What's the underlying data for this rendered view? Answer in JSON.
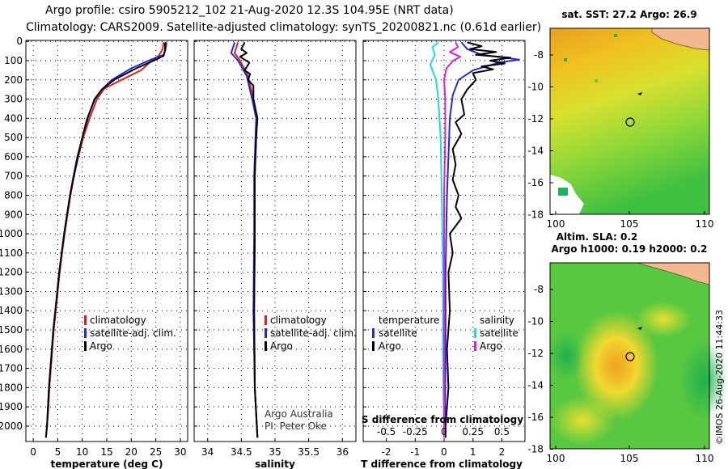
{
  "header": {
    "title_line1": "Argo profile: csiro 5905212_102 21-Aug-2020 12.3S 104.95E (NRT data)",
    "title_line2": "Climatology: CARS2009. Satellite-adjusted climatology: synTS_20200821.nc (0.61d earlier)"
  },
  "colors": {
    "climatology": "#e0201c",
    "satellite": "#1f2cd8",
    "argo": "#000000",
    "sat_salinity": "#22d8e0",
    "argo_salinity": "#e020d8"
  },
  "depth_axis": {
    "ticks": [
      0,
      100,
      200,
      300,
      400,
      500,
      600,
      700,
      800,
      900,
      1000,
      1100,
      1200,
      1300,
      1400,
      1500,
      1600,
      1700,
      1800,
      1900,
      2000
    ],
    "range": [
      -5,
      2080
    ]
  },
  "chart_data": [
    {
      "id": "temperature",
      "type": "line",
      "xlabel": "temperature (deg C)",
      "ylabel": "",
      "xlim": [
        -1.5,
        31.5
      ],
      "xticks": [
        0,
        5,
        10,
        15,
        20,
        25,
        30
      ],
      "xtick_labels": [
        "0",
        "5",
        "10",
        "15",
        "20",
        "25",
        "30"
      ],
      "legend": [
        "climatology",
        "satellite-adj. clim.",
        "Argo"
      ],
      "series": [
        {
          "name": "climatology",
          "color": "#e0201c",
          "points": [
            [
              26.6,
              5
            ],
            [
              26.4,
              40
            ],
            [
              25.6,
              75
            ],
            [
              24.2,
              100
            ],
            [
              22,
              150
            ],
            [
              18,
              200
            ],
            [
              14.5,
              245
            ],
            [
              13,
              300
            ],
            [
              11.5,
              400
            ],
            [
              10.2,
              500
            ],
            [
              9.2,
              600
            ],
            [
              8.3,
              700
            ],
            [
              7.6,
              800
            ],
            [
              7,
              900
            ],
            [
              6.4,
              1000
            ],
            [
              5.9,
              1100
            ],
            [
              5.4,
              1200
            ],
            [
              5,
              1300
            ],
            [
              4.6,
              1400
            ],
            [
              4.2,
              1500
            ],
            [
              3.9,
              1600
            ],
            [
              3.6,
              1700
            ],
            [
              3.3,
              1800
            ],
            [
              3.1,
              1900
            ],
            [
              2.8,
              2000
            ],
            [
              2.6,
              2060
            ]
          ]
        },
        {
          "name": "satellite-adj. clim.",
          "color": "#1f2cd8",
          "points": [
            [
              27.2,
              5
            ],
            [
              27,
              40
            ],
            [
              26.6,
              70
            ],
            [
              24,
              95
            ],
            [
              20,
              140
            ],
            [
              16,
              200
            ],
            [
              14,
              250
            ],
            [
              12.6,
              300
            ],
            [
              11,
              400
            ],
            [
              10,
              500
            ],
            [
              9,
              600
            ],
            [
              8.2,
              700
            ],
            [
              7.5,
              800
            ],
            [
              6.9,
              900
            ],
            [
              6.3,
              1000
            ],
            [
              5.8,
              1100
            ],
            [
              5.3,
              1200
            ],
            [
              4.9,
              1300
            ],
            [
              4.5,
              1400
            ],
            [
              4.1,
              1500
            ],
            [
              3.8,
              1600
            ],
            [
              3.5,
              1700
            ],
            [
              3.2,
              1800
            ],
            [
              3,
              1900
            ],
            [
              2.8,
              2000
            ],
            [
              2.6,
              2060
            ]
          ]
        },
        {
          "name": "Argo",
          "color": "#000000",
          "points": [
            [
              26.9,
              5
            ],
            [
              26.9,
              45
            ],
            [
              26.6,
              75
            ],
            [
              25,
              95
            ],
            [
              21,
              140
            ],
            [
              16.5,
              200
            ],
            [
              14,
              250
            ],
            [
              12.5,
              300
            ],
            [
              11.1,
              400
            ],
            [
              10,
              500
            ],
            [
              9.1,
              600
            ],
            [
              8.3,
              700
            ],
            [
              7.5,
              800
            ],
            [
              6.9,
              900
            ],
            [
              6.3,
              1000
            ],
            [
              5.8,
              1100
            ],
            [
              5.3,
              1200
            ],
            [
              4.9,
              1300
            ],
            [
              4.5,
              1400
            ],
            [
              4.1,
              1500
            ],
            [
              3.8,
              1600
            ],
            [
              3.5,
              1700
            ],
            [
              3.2,
              1800
            ],
            [
              3,
              1900
            ],
            [
              2.8,
              2000
            ],
            [
              2.6,
              2060
            ]
          ]
        }
      ]
    },
    {
      "id": "salinity",
      "type": "line",
      "xlabel": "salinity",
      "ylabel": "",
      "xlim": [
        33.8,
        36.2
      ],
      "xticks": [
        34,
        34.5,
        35,
        35.5,
        36
      ],
      "xtick_labels": [
        "34",
        "34.5",
        "35",
        "35.5",
        "36"
      ],
      "legend": [
        "climatology",
        "satellite-adj. clim.",
        "Argo"
      ],
      "credit_line1": "Argo Australia",
      "credit_line2": "PI: Peter Oke",
      "series": [
        {
          "name": "climatology",
          "color": "#e0201c",
          "points": [
            [
              34.45,
              5
            ],
            [
              34.4,
              60
            ],
            [
              34.48,
              100
            ],
            [
              34.6,
              180
            ],
            [
              34.68,
              300
            ],
            [
              34.73,
              400
            ],
            [
              34.72,
              500
            ],
            [
              34.7,
              700
            ],
            [
              34.7,
              1000
            ],
            [
              34.69,
              1400
            ],
            [
              34.7,
              1800
            ],
            [
              34.73,
              2000
            ],
            [
              34.74,
              2060
            ]
          ]
        },
        {
          "name": "satellite-adj. clim.",
          "color": "#1f2cd8",
          "points": [
            [
              34.4,
              5
            ],
            [
              34.35,
              60
            ],
            [
              34.45,
              100
            ],
            [
              34.58,
              180
            ],
            [
              34.66,
              300
            ],
            [
              34.72,
              400
            ],
            [
              34.71,
              500
            ],
            [
              34.69,
              700
            ],
            [
              34.69,
              1000
            ],
            [
              34.68,
              1400
            ],
            [
              34.7,
              1800
            ],
            [
              34.73,
              2000
            ],
            [
              34.74,
              2060
            ]
          ]
        },
        {
          "name": "Argo",
          "color": "#000000",
          "points": [
            [
              34.55,
              5
            ],
            [
              34.5,
              40
            ],
            [
              34.58,
              60
            ],
            [
              34.48,
              80
            ],
            [
              34.62,
              110
            ],
            [
              34.55,
              150
            ],
            [
              34.63,
              170
            ],
            [
              34.6,
              200
            ],
            [
              34.68,
              230
            ],
            [
              34.68,
              300
            ],
            [
              34.74,
              400
            ],
            [
              34.72,
              500
            ],
            [
              34.7,
              700
            ],
            [
              34.7,
              1000
            ],
            [
              34.69,
              1400
            ],
            [
              34.7,
              1800
            ],
            [
              34.73,
              2000
            ],
            [
              34.74,
              2060
            ]
          ]
        }
      ]
    },
    {
      "id": "difference",
      "type": "line",
      "xlabel": "T difference from climatology",
      "xlabel2": "S difference from climatology",
      "xlim": [
        -2.8,
        2.8
      ],
      "xticks": [
        -2,
        -1,
        0,
        1,
        2
      ],
      "xtick_labels": [
        "-2",
        "-1",
        "0",
        "1",
        "2"
      ],
      "s_ticks": [
        -0.5,
        -0.25,
        0,
        0.25,
        0.5
      ],
      "s_tick_labels": [
        "-0.5",
        "-0.25",
        "0",
        "0.25",
        "0.5"
      ],
      "legend_temperature_heading": "temperature",
      "legend_salinity_heading": "salinity",
      "legend_temperature": [
        "satellite",
        "Argo"
      ],
      "legend_salinity": [
        "satellite",
        "Argo"
      ],
      "series": [
        {
          "name": "T satellite",
          "color": "#1f2cd8",
          "points": [
            [
              0.6,
              5
            ],
            [
              0.8,
              40
            ],
            [
              1.3,
              70
            ],
            [
              2.1,
              85
            ],
            [
              2.6,
              95
            ],
            [
              1.9,
              110
            ],
            [
              1,
              150
            ],
            [
              0.5,
              200
            ],
            [
              0.3,
              280
            ],
            [
              0.2,
              400
            ],
            [
              0.15,
              600
            ],
            [
              0.1,
              800
            ],
            [
              0.05,
              1200
            ],
            [
              0.05,
              1600
            ],
            [
              0.03,
              2000
            ],
            [
              0.02,
              2060
            ]
          ]
        },
        {
          "name": "T Argo",
          "color": "#000000",
          "points": [
            [
              0.8,
              5
            ],
            [
              1.3,
              25
            ],
            [
              0.9,
              40
            ],
            [
              1.8,
              55
            ],
            [
              1.1,
              70
            ],
            [
              2.3,
              85
            ],
            [
              1.6,
              100
            ],
            [
              2.1,
              115
            ],
            [
              1.3,
              130
            ],
            [
              1.7,
              145
            ],
            [
              1,
              165
            ],
            [
              1.1,
              200
            ],
            [
              0.8,
              250
            ],
            [
              0.6,
              300
            ],
            [
              0.7,
              380
            ],
            [
              0.4,
              420
            ],
            [
              0.6,
              480
            ],
            [
              0.3,
              560
            ],
            [
              0.4,
              640
            ],
            [
              0.3,
              720
            ],
            [
              0.5,
              800
            ],
            [
              0.4,
              860
            ],
            [
              0.6,
              920
            ],
            [
              0.2,
              1000
            ],
            [
              0.3,
              1100
            ],
            [
              0.15,
              1200
            ],
            [
              0.2,
              1400
            ],
            [
              0.1,
              1600
            ],
            [
              0.15,
              1800
            ],
            [
              0.05,
              2000
            ],
            [
              0.05,
              2060
            ]
          ]
        },
        {
          "name": "S satellite",
          "color": "#22d8e0",
          "points": [
            [
              -0.05,
              5
            ],
            [
              -0.1,
              30
            ],
            [
              -0.08,
              70
            ],
            [
              -0.12,
              120
            ],
            [
              -0.07,
              200
            ],
            [
              -0.05,
              300
            ],
            [
              -0.03,
              500
            ],
            [
              -0.02,
              800
            ],
            [
              -0.01,
              1200
            ],
            [
              -0.01,
              1600
            ],
            [
              0,
              2060
            ]
          ]
        },
        {
          "name": "S Argo",
          "color": "#e020d8",
          "points": [
            [
              0.1,
              5
            ],
            [
              0.12,
              30
            ],
            [
              0.05,
              55
            ],
            [
              0.14,
              80
            ],
            [
              0.08,
              100
            ],
            [
              0.02,
              140
            ],
            [
              0,
              200
            ],
            [
              0.01,
              300
            ],
            [
              0.01,
              500
            ],
            [
              0,
              800
            ],
            [
              0,
              1200
            ],
            [
              0,
              1600
            ],
            [
              0,
              2060
            ]
          ]
        }
      ]
    }
  ],
  "maps": {
    "sst_title": "sat. SST: 27.2 Argo: 26.9",
    "sla_title1": "Altim. SLA: 0.2",
    "sla_title2": "Argo h1000: 0.19 h2000: 0.2",
    "lat_ticks": [
      "-8",
      "-10",
      "-12",
      "-14",
      "-16",
      "-18"
    ],
    "lon_ticks": [
      "100",
      "105",
      "110"
    ],
    "argo_marker": "circle",
    "copyright": "©IMOS 26-Aug-2020 11:44:33"
  }
}
